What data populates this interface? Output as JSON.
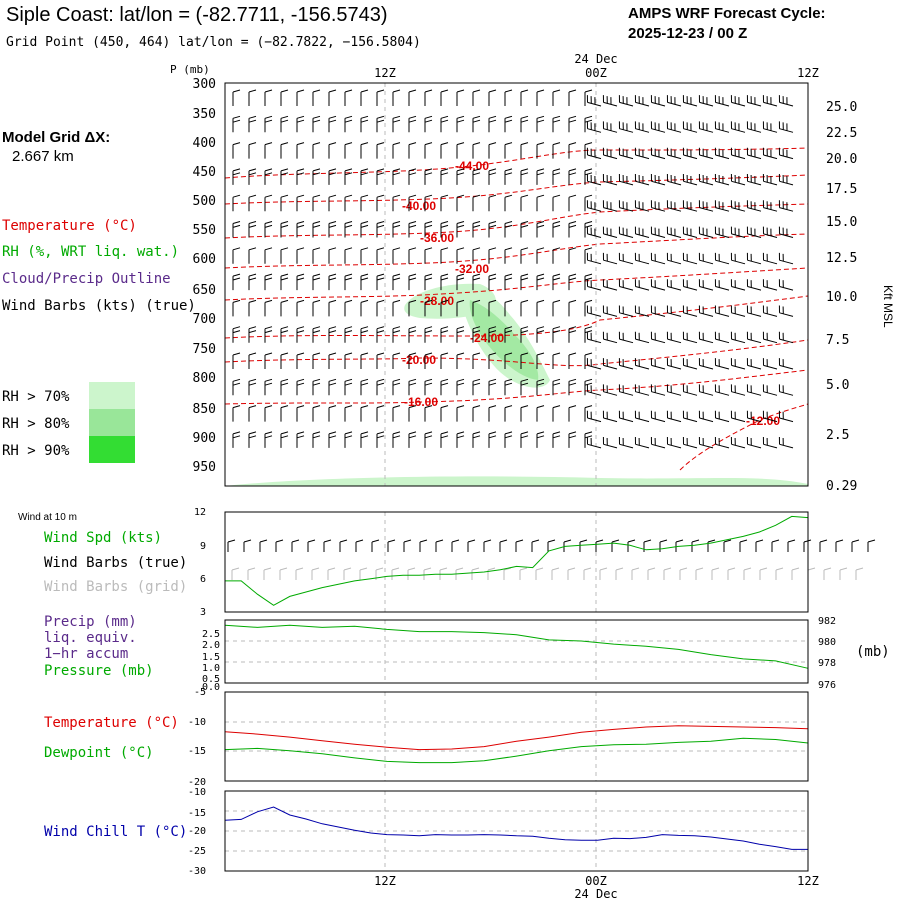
{
  "header": {
    "title": "Siple Coast:  lat/lon = (-82.7711, -156.5743)",
    "grid_point": "Grid Point (450, 464) lat/lon = (−82.7822, −156.5804)",
    "cycle_label": "AMPS WRF Forecast Cycle:",
    "cycle_value": "2025-12-23 / 00  Z"
  },
  "model_grid": {
    "label": "Model Grid ΔX:",
    "value": "2.667 km"
  },
  "colors": {
    "temperature": "#dd0000",
    "rh": "#00aa00",
    "cloud": "#5a2a8a",
    "wind": "#000000",
    "wind_grid": "#bbbbbb",
    "pressure": "#00aa00",
    "windchill": "#0000aa",
    "rh70": "#ccf5cc",
    "rh80": "#99e699",
    "rh90": "#33dd33"
  },
  "time_axis": {
    "ticks": [
      "12Z",
      "00Z",
      "12Z"
    ],
    "date": "24 Dec"
  },
  "sounding": {
    "pressure_axis_title": "P (mb)",
    "pressure_ticks": [
      "300",
      "350",
      "400",
      "450",
      "500",
      "550",
      "600",
      "650",
      "700",
      "750",
      "800",
      "850",
      "900",
      "950"
    ],
    "height_axis_title": "Kft MSL",
    "height_ticks": [
      "25.0",
      "22.5",
      "20.0",
      "17.5",
      "15.0",
      "12.5",
      "10.0",
      "7.5",
      "5.0",
      "2.5",
      "0.29"
    ],
    "legend": {
      "temperature": "Temperature (°C)",
      "rh": "RH (%, WRT liq. wat.)",
      "cloud": "Cloud/Precip Outline",
      "wind": "Wind Barbs (kts) (true)",
      "rh70": "RH > 70%",
      "rh80": "RH > 80%",
      "rh90": "RH > 90%"
    },
    "isotherm_labels": [
      "-44.00",
      "-40.00",
      "-36.00",
      "-32.00",
      "-28.00",
      "-24.00",
      "-20.00",
      "-16.00",
      "-12.00"
    ]
  },
  "wind10m": {
    "title": "Wind at 10 m",
    "legend_speed": "Wind Spd (kts)",
    "legend_true": "Wind Barbs (true)",
    "legend_grid": "Wind Barbs (grid)",
    "y_ticks": [
      "12",
      "9",
      "6",
      "3"
    ]
  },
  "precip": {
    "legend_1": "Precip (mm)",
    "legend_2": "liq. equiv.",
    "legend_3": "1−hr accum",
    "legend_pressure": "Pressure (mb)",
    "left_ticks": [
      "2.5",
      "2.0",
      "1.5",
      "1.0",
      "0.5",
      "0.0"
    ],
    "right_ticks": [
      "982",
      "980",
      "978",
      "976"
    ],
    "right_unit": "(mb)"
  },
  "temps": {
    "legend_temp": "Temperature (°C)",
    "legend_dew": "Dewpoint (°C)",
    "y_ticks": [
      "-5",
      "-10",
      "-15",
      "-20"
    ]
  },
  "windchill": {
    "legend": "Wind Chill T (°C)",
    "y_ticks": [
      "-10",
      "-15",
      "-20",
      "-25",
      "-30"
    ]
  },
  "chart_data": [
    {
      "type": "line",
      "panel": "wind10m",
      "x_hours": [
        0,
        1,
        2,
        3,
        4,
        5,
        6,
        7,
        8,
        9,
        10,
        11,
        12,
        13,
        14,
        15,
        16,
        17,
        18,
        19,
        20,
        21,
        22,
        23,
        24,
        25,
        26,
        27,
        28,
        29,
        30,
        31,
        32,
        33,
        34,
        35,
        36
      ],
      "series": [
        {
          "name": "Wind Spd (kts)",
          "values": [
            5.8,
            5.8,
            4.6,
            3.6,
            4.4,
            4.8,
            5.2,
            5.5,
            5.8,
            6.0,
            6.2,
            6.3,
            6.3,
            6.4,
            6.4,
            6.5,
            6.6,
            6.8,
            7.1,
            7.0,
            8.5,
            8.9,
            9.0,
            9.1,
            9.2,
            9.0,
            8.6,
            8.7,
            8.9,
            9.0,
            9.2,
            9.5,
            9.8,
            10.2,
            10.8,
            11.6,
            11.5
          ]
        }
      ],
      "ylim": [
        3,
        12
      ]
    },
    {
      "type": "line",
      "panel": "pressure",
      "x_hours": [
        0,
        2,
        4,
        6,
        8,
        10,
        12,
        14,
        16,
        18,
        20,
        22,
        24,
        26,
        28,
        30,
        32,
        34,
        36
      ],
      "series": [
        {
          "name": "Pressure (mb)",
          "values": [
            981.5,
            981.3,
            981.5,
            981.3,
            981.4,
            981.1,
            980.9,
            980.9,
            980.8,
            980.6,
            980.1,
            980.0,
            979.7,
            979.5,
            979.2,
            978.7,
            978.3,
            978.1,
            977.4
          ]
        }
      ],
      "ylim": [
        976,
        982
      ]
    },
    {
      "type": "line",
      "panel": "temperature",
      "x_hours": [
        0,
        2,
        4,
        6,
        8,
        10,
        12,
        14,
        16,
        18,
        20,
        22,
        24,
        26,
        28,
        30,
        32,
        34,
        36
      ],
      "series": [
        {
          "name": "Temperature (°C)",
          "values": [
            -11.7,
            -12.1,
            -12.6,
            -13.2,
            -13.8,
            -14.3,
            -14.7,
            -14.6,
            -14.2,
            -13.3,
            -12.6,
            -11.8,
            -11.3,
            -10.9,
            -10.7,
            -10.8,
            -10.9,
            -11.0,
            -11.2
          ]
        },
        {
          "name": "Dewpoint (°C)",
          "values": [
            -14.7,
            -14.5,
            -14.9,
            -15.4,
            -16.1,
            -16.7,
            -16.9,
            -16.9,
            -16.6,
            -15.8,
            -14.9,
            -14.2,
            -13.9,
            -13.8,
            -13.5,
            -13.3,
            -12.8,
            -13.0,
            -13.6
          ]
        }
      ],
      "ylim": [
        -20,
        -5
      ]
    },
    {
      "type": "line",
      "panel": "windchill",
      "x_hours": [
        0,
        1,
        2,
        3,
        4,
        5,
        6,
        7,
        8,
        9,
        10,
        11,
        12,
        13,
        14,
        15,
        16,
        17,
        18,
        19,
        20,
        21,
        22,
        23,
        24,
        25,
        26,
        27,
        28,
        29,
        30,
        31,
        32,
        33,
        34,
        35,
        36
      ],
      "series": [
        {
          "name": "Wind Chill T (°C)",
          "values": [
            -17.3,
            -17.1,
            -15.2,
            -14.0,
            -16.0,
            -17.0,
            -18.2,
            -19.0,
            -19.8,
            -20.5,
            -20.9,
            -21.0,
            -21.2,
            -20.9,
            -21.0,
            -21.0,
            -20.9,
            -21.0,
            -21.2,
            -21.3,
            -21.8,
            -22.2,
            -22.3,
            -22.3,
            -21.8,
            -21.9,
            -21.6,
            -20.9,
            -21.1,
            -21.2,
            -21.5,
            -22.0,
            -22.5,
            -23.3,
            -23.9,
            -24.6,
            -24.6
          ]
        }
      ],
      "ylim": [
        -30,
        -10
      ]
    }
  ]
}
